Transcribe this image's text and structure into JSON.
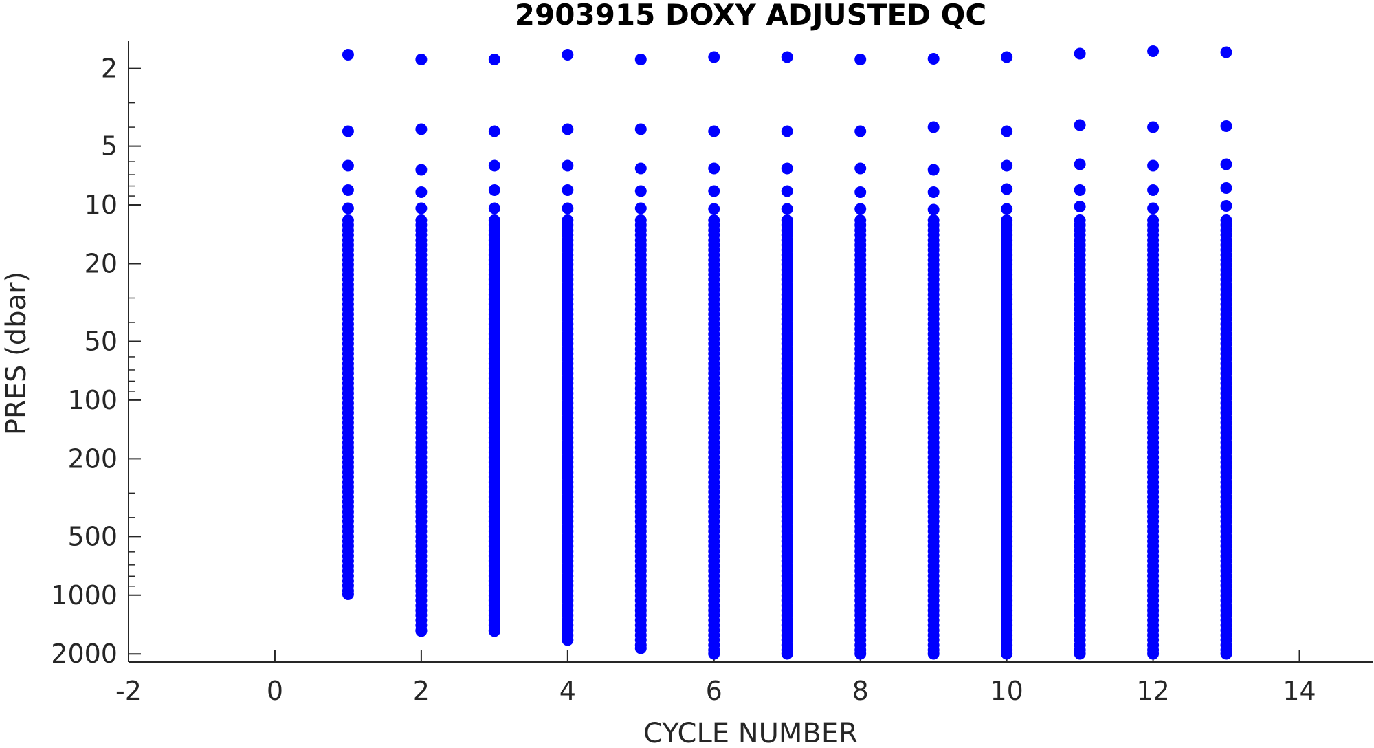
{
  "chart_data": {
    "type": "scatter",
    "title": "2903915  DOXY ADJUSTED QC",
    "xlabel": "CYCLE NUMBER",
    "ylabel": "PRES (dbar)",
    "xlim": [
      -2,
      15
    ],
    "ylim": [
      1.45,
      2200
    ],
    "yscale": "log",
    "yreversed": true,
    "grid": false,
    "xticks": [
      -2,
      0,
      2,
      4,
      6,
      8,
      10,
      12,
      14
    ],
    "yticks": [
      2,
      5,
      10,
      20,
      50,
      100,
      200,
      500,
      1000,
      2000
    ],
    "marker_color": "#0000ff",
    "axis_color": "#262626",
    "series": [
      {
        "x": [
          1,
          2,
          3,
          4,
          5,
          6,
          7,
          8,
          9,
          10,
          11,
          12,
          13
        ],
        "shallow_pressures": [
          [
            1.7,
            4.2,
            6.3,
            8.4,
            10.4
          ],
          [
            1.8,
            4.1,
            6.6,
            8.6,
            10.4
          ],
          [
            1.8,
            4.2,
            6.3,
            8.4,
            10.4
          ],
          [
            1.7,
            4.1,
            6.3,
            8.4,
            10.4
          ],
          [
            1.8,
            4.1,
            6.5,
            8.5,
            10.4
          ],
          [
            1.75,
            4.2,
            6.5,
            8.5,
            10.5
          ],
          [
            1.75,
            4.2,
            6.5,
            8.5,
            10.5
          ],
          [
            1.8,
            4.2,
            6.5,
            8.6,
            10.5
          ],
          [
            1.78,
            4.0,
            6.6,
            8.6,
            10.6
          ],
          [
            1.75,
            4.2,
            6.3,
            8.3,
            10.5
          ],
          [
            1.68,
            3.9,
            6.2,
            8.4,
            10.2
          ],
          [
            1.63,
            4.0,
            6.3,
            8.4,
            10.4
          ],
          [
            1.65,
            3.95,
            6.2,
            8.2,
            10.1
          ]
        ],
        "max_pressure": [
          990,
          1530,
          1530,
          1700,
          1870,
          2000,
          2000,
          2000,
          2000,
          2000,
          2000,
          2000,
          2000
        ]
      }
    ]
  }
}
